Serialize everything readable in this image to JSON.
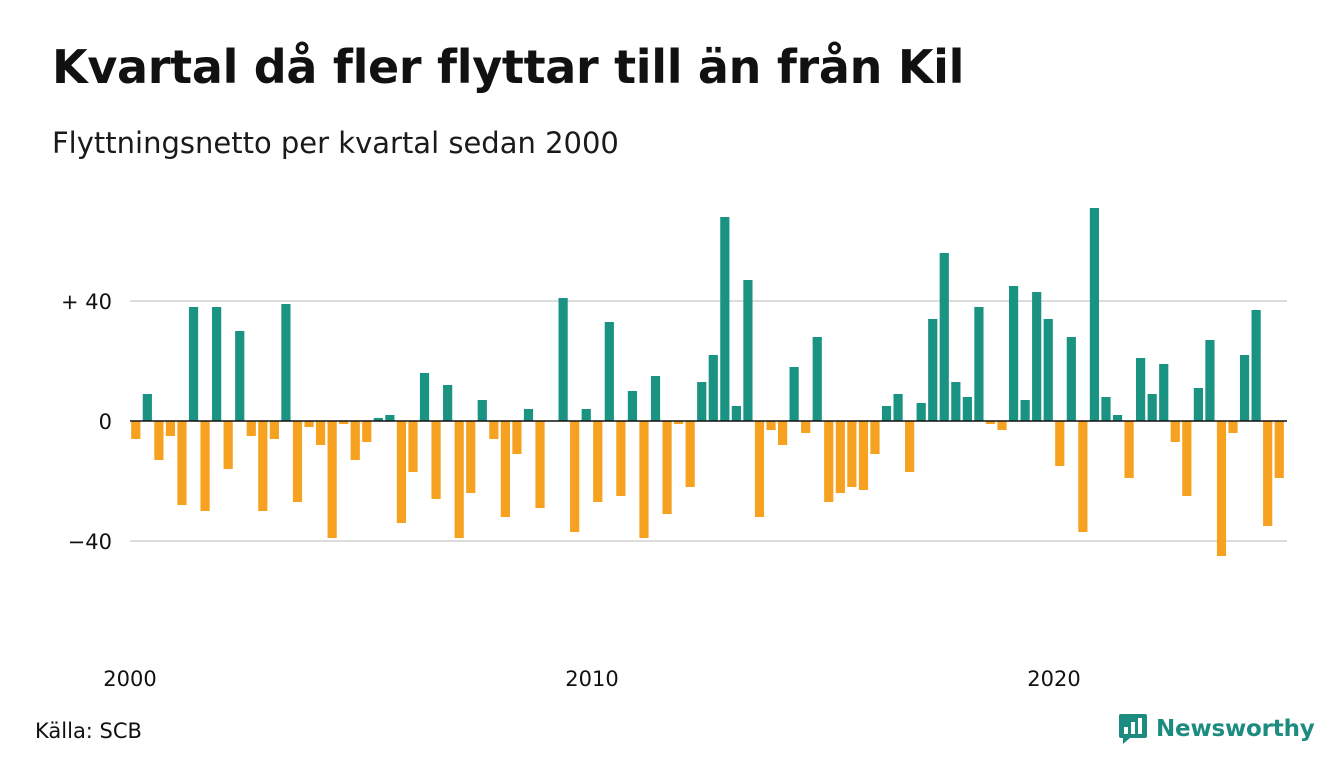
{
  "header": {
    "title": "Kvartal då fler flyttar till än från Kil",
    "subtitle": "Flyttningsnetto per kvartal sedan 2000"
  },
  "footer": {
    "source": "Källa: SCB",
    "brand": "Newsworthy"
  },
  "colors": {
    "positive": "#1a9383",
    "negative": "#f6a11f",
    "grid": "#dcdcdc",
    "brand": "#1d8c80"
  },
  "icons": {
    "brand_logo": "newsworthy-logo-icon"
  },
  "chart_data": {
    "type": "bar",
    "title": "Kvartal då fler flyttar till än från Kil",
    "subtitle": "Flyttningsnetto per kvartal sedan 2000",
    "xlabel": "",
    "ylabel": "",
    "ylim": [
      -60,
      72
    ],
    "yticks": [
      {
        "value": 40,
        "label": "+ 40"
      },
      {
        "value": 0,
        "label": "0"
      },
      {
        "value": -40,
        "label": "−40"
      }
    ],
    "xticks": [
      {
        "value": 2000,
        "label": "2000"
      },
      {
        "value": 2010,
        "label": "2010"
      },
      {
        "value": 2020,
        "label": "2020"
      }
    ],
    "x_start": 2000,
    "periods_per_year": 4,
    "grid": true,
    "legend": "none",
    "values": [
      -6,
      9,
      -13,
      -5,
      -28,
      38,
      -30,
      38,
      -16,
      30,
      -5,
      -30,
      -6,
      39,
      -27,
      -2,
      -8,
      -39,
      -1,
      -13,
      -7,
      1,
      2,
      -34,
      -17,
      16,
      -26,
      12,
      -39,
      -24,
      7,
      -6,
      -32,
      -11,
      4,
      -29,
      0,
      41,
      -37,
      4,
      -27,
      33,
      -25,
      10,
      -39,
      15,
      -31,
      -1,
      -22,
      13,
      22,
      68,
      5,
      47,
      -32,
      -3,
      -8,
      18,
      -4,
      28,
      -27,
      -24,
      -22,
      -23,
      -11,
      5,
      9,
      -17,
      6,
      34,
      56,
      13,
      8,
      38,
      -1,
      -3,
      45,
      7,
      43,
      34,
      -15,
      28,
      -37,
      71,
      8,
      2,
      -19,
      21,
      9,
      19,
      -7,
      -25,
      11,
      27,
      -45,
      -4,
      22,
      37,
      -35,
      -19
    ]
  }
}
